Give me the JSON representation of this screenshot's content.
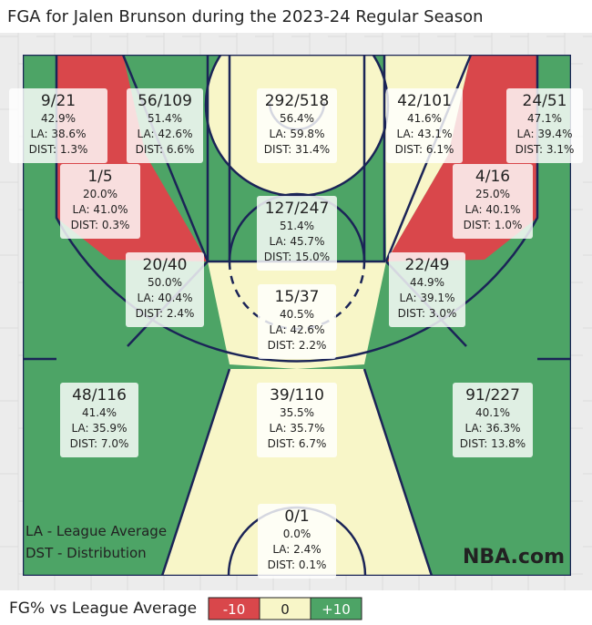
{
  "header": {
    "title": "FGA for Jalen Brunson during the 2023-24 Regular Season"
  },
  "zones": [
    {
      "shots": "9/21",
      "pct": "42.9%",
      "la": "LA: 38.6%",
      "dist": "DIST: 1.3%"
    },
    {
      "shots": "56/109",
      "pct": "51.4%",
      "la": "LA: 42.6%",
      "dist": "DIST: 6.6%"
    },
    {
      "shots": "292/518",
      "pct": "56.4%",
      "la": "LA: 59.8%",
      "dist": "DIST: 31.4%"
    },
    {
      "shots": "42/101",
      "pct": "41.6%",
      "la": "LA: 43.1%",
      "dist": "DIST: 6.1%"
    },
    {
      "shots": "24/51",
      "pct": "47.1%",
      "la": "LA: 39.4%",
      "dist": "DIST: 3.1%"
    },
    {
      "shots": "1/5",
      "pct": "20.0%",
      "la": "LA: 41.0%",
      "dist": "DIST: 0.3%"
    },
    {
      "shots": "127/247",
      "pct": "51.4%",
      "la": "LA: 45.7%",
      "dist": "DIST: 15.0%"
    },
    {
      "shots": "4/16",
      "pct": "25.0%",
      "la": "LA: 40.1%",
      "dist": "DIST: 1.0%"
    },
    {
      "shots": "20/40",
      "pct": "50.0%",
      "la": "LA: 40.4%",
      "dist": "DIST: 2.4%"
    },
    {
      "shots": "15/37",
      "pct": "40.5%",
      "la": "LA: 42.6%",
      "dist": "DIST: 2.2%"
    },
    {
      "shots": "22/49",
      "pct": "44.9%",
      "la": "LA: 39.1%",
      "dist": "DIST: 3.0%"
    },
    {
      "shots": "48/116",
      "pct": "41.4%",
      "la": "LA: 35.9%",
      "dist": "DIST: 7.0%"
    },
    {
      "shots": "39/110",
      "pct": "35.5%",
      "la": "LA: 35.7%",
      "dist": "DIST: 6.7%"
    },
    {
      "shots": "91/227",
      "pct": "40.1%",
      "la": "LA: 36.3%",
      "dist": "DIST: 13.8%"
    },
    {
      "shots": "0/1",
      "pct": "0.0%",
      "la": "LA: 2.4%",
      "dist": "DIST: 0.1%"
    }
  ],
  "notes": [
    "LA - League Average",
    "DST - Distribution"
  ],
  "brand": "NBA.com",
  "legend": {
    "title": "FG% vs League Average",
    "items": [
      "-10",
      "0",
      "+10"
    ]
  }
}
